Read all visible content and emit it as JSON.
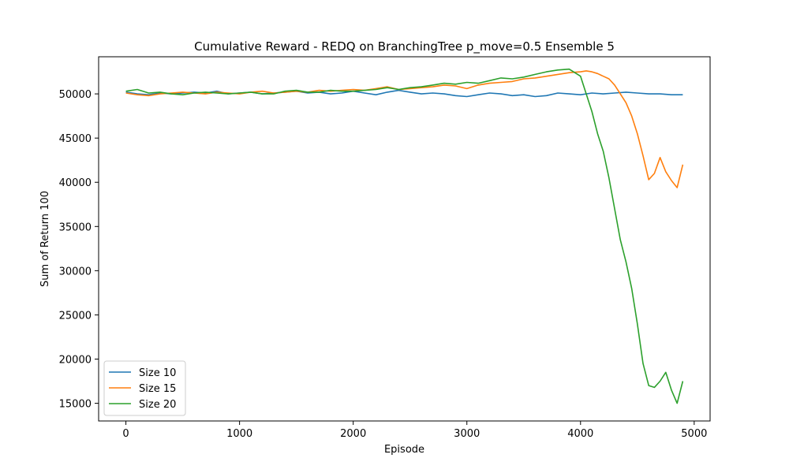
{
  "chart_data": {
    "type": "line",
    "title": "Cumulative Reward - REDQ on BranchingTree p_move=0.5 Ensemble 5",
    "xlabel": "Episode",
    "ylabel": "Sum of Return 100",
    "xlim": [
      -240,
      5140
    ],
    "ylim": [
      13000,
      54200
    ],
    "xticks": [
      0,
      1000,
      2000,
      3000,
      4000,
      5000
    ],
    "yticks": [
      15000,
      20000,
      25000,
      30000,
      35000,
      40000,
      45000,
      50000
    ],
    "grid": false,
    "legend_position": "lower-left",
    "series": [
      {
        "name": "Size 10",
        "color": "#1f77b4",
        "x": [
          0,
          100,
          200,
          300,
          400,
          500,
          600,
          700,
          800,
          900,
          1000,
          1100,
          1200,
          1300,
          1400,
          1500,
          1600,
          1700,
          1800,
          1900,
          2000,
          2100,
          2200,
          2300,
          2400,
          2500,
          2600,
          2700,
          2800,
          2900,
          3000,
          3100,
          3200,
          3300,
          3400,
          3500,
          3600,
          3700,
          3800,
          3900,
          4000,
          4100,
          4200,
          4300,
          4400,
          4500,
          4600,
          4700,
          4800,
          4900
        ],
        "y": [
          50200,
          50000,
          49900,
          50100,
          50000,
          50100,
          50200,
          50100,
          50300,
          50000,
          50100,
          50200,
          50000,
          50100,
          50200,
          50300,
          50100,
          50200,
          50000,
          50100,
          50300,
          50100,
          49900,
          50200,
          50400,
          50200,
          50000,
          50100,
          50000,
          49800,
          49700,
          49900,
          50100,
          50000,
          49800,
          49900,
          49700,
          49800,
          50100,
          50000,
          49900,
          50100,
          50000,
          50100,
          50200,
          50100,
          50000,
          50000,
          49900,
          49900
        ]
      },
      {
        "name": "Size 15",
        "color": "#ff7f0e",
        "x": [
          0,
          100,
          200,
          300,
          400,
          500,
          600,
          700,
          800,
          900,
          1000,
          1100,
          1200,
          1300,
          1400,
          1500,
          1600,
          1700,
          1800,
          1900,
          2000,
          2100,
          2200,
          2300,
          2400,
          2500,
          2600,
          2700,
          2800,
          2900,
          3000,
          3100,
          3200,
          3300,
          3400,
          3500,
          3600,
          3700,
          3800,
          3900,
          4000,
          4050,
          4100,
          4150,
          4200,
          4250,
          4300,
          4350,
          4400,
          4450,
          4500,
          4550,
          4600,
          4650,
          4700,
          4750,
          4800,
          4850,
          4900
        ],
        "y": [
          50100,
          49900,
          49800,
          50000,
          50100,
          50200,
          50100,
          50000,
          50200,
          50100,
          50000,
          50200,
          50300,
          50100,
          50200,
          50300,
          50200,
          50400,
          50300,
          50400,
          50500,
          50400,
          50600,
          50800,
          50500,
          50600,
          50700,
          50800,
          51000,
          50900,
          50600,
          51000,
          51200,
          51300,
          51400,
          51700,
          51800,
          52000,
          52200,
          52400,
          52500,
          52600,
          52500,
          52300,
          52000,
          51700,
          51000,
          50000,
          49000,
          47500,
          45500,
          43000,
          40300,
          41000,
          42800,
          41200,
          40200,
          39400,
          42000
        ]
      },
      {
        "name": "Size 20",
        "color": "#2ca02c",
        "x": [
          0,
          100,
          200,
          300,
          400,
          500,
          600,
          700,
          800,
          900,
          1000,
          1100,
          1200,
          1300,
          1400,
          1500,
          1600,
          1700,
          1800,
          1900,
          2000,
          2100,
          2200,
          2300,
          2400,
          2500,
          2600,
          2700,
          2800,
          2900,
          3000,
          3100,
          3200,
          3300,
          3400,
          3500,
          3600,
          3700,
          3800,
          3900,
          4000,
          4050,
          4100,
          4150,
          4200,
          4250,
          4300,
          4350,
          4400,
          4450,
          4500,
          4550,
          4600,
          4650,
          4700,
          4750,
          4800,
          4850,
          4900
        ],
        "y": [
          50300,
          50500,
          50100,
          50200,
          50000,
          49900,
          50100,
          50200,
          50100,
          50000,
          50100,
          50200,
          50000,
          50000,
          50300,
          50400,
          50200,
          50200,
          50400,
          50300,
          50300,
          50400,
          50500,
          50700,
          50500,
          50700,
          50800,
          51000,
          51200,
          51100,
          51300,
          51200,
          51500,
          51800,
          51700,
          51900,
          52200,
          52500,
          52700,
          52800,
          52000,
          50000,
          48000,
          45500,
          43500,
          40500,
          37000,
          33500,
          31000,
          28000,
          24000,
          19500,
          17000,
          16800,
          17500,
          18500,
          16500,
          15000,
          17500
        ]
      }
    ]
  }
}
